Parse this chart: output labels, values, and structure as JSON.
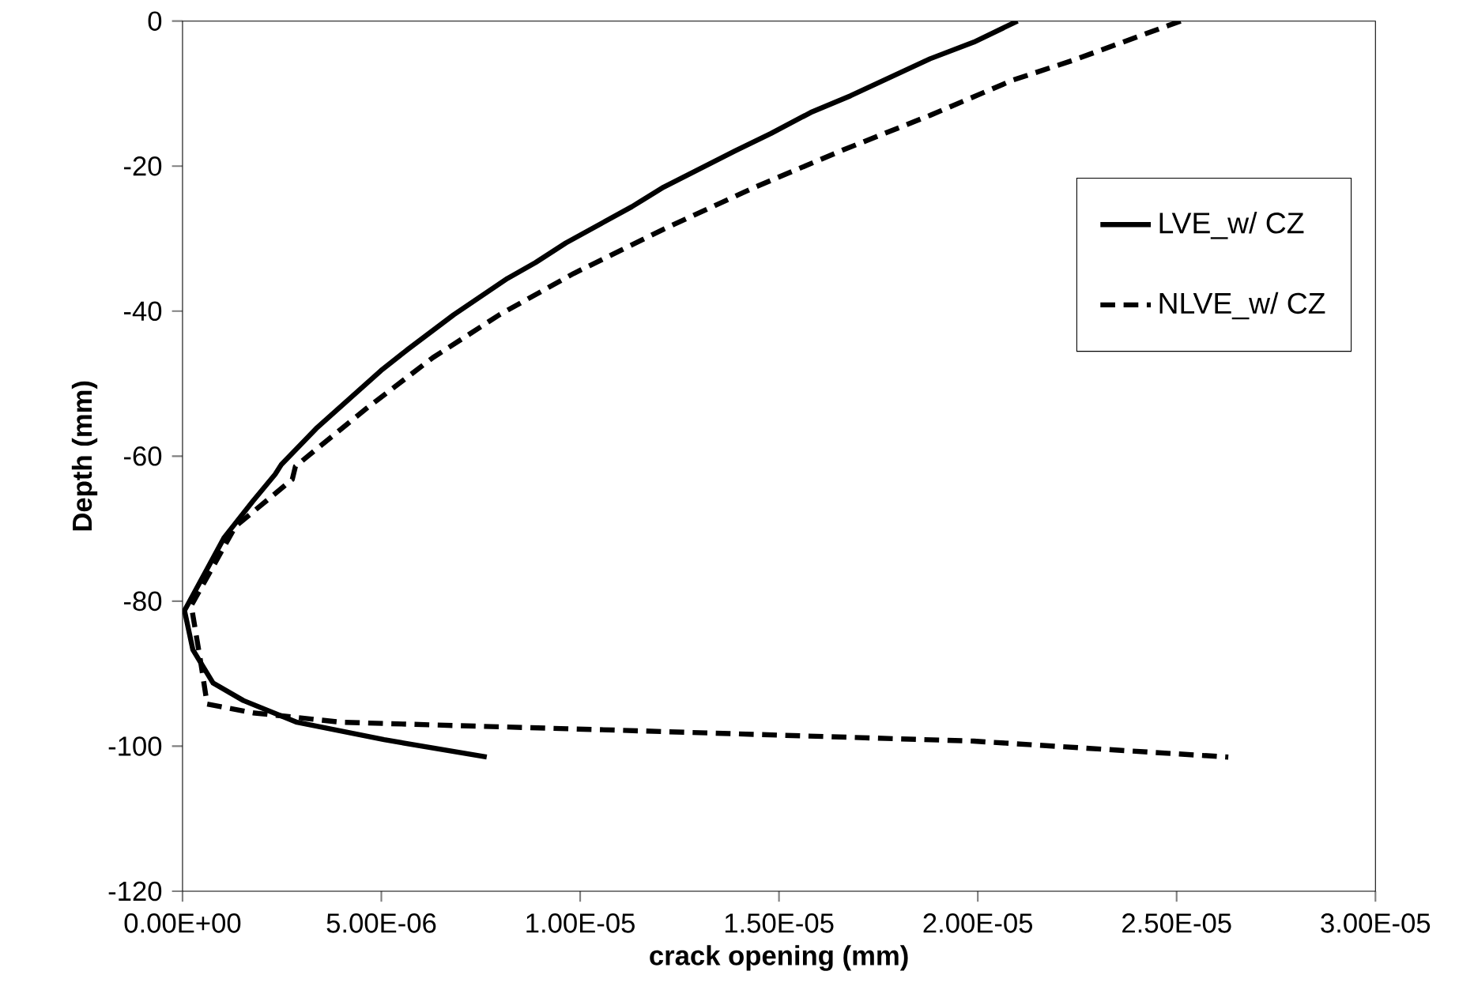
{
  "chart_data": {
    "type": "line",
    "xlabel": "crack opening (mm)",
    "ylabel": "Depth (mm)",
    "xlim": [
      0,
      3e-05
    ],
    "ylim": [
      -120,
      0
    ],
    "xticks": [
      {
        "value": 0,
        "label": "0.00E+00"
      },
      {
        "value": 5e-06,
        "label": "5.00E-06"
      },
      {
        "value": 1e-05,
        "label": "1.00E-05"
      },
      {
        "value": 1.5e-05,
        "label": "1.50E-05"
      },
      {
        "value": 2e-05,
        "label": "2.00E-05"
      },
      {
        "value": 2.5e-05,
        "label": "2.50E-05"
      },
      {
        "value": 3e-05,
        "label": "3.00E-05"
      }
    ],
    "yticks": [
      -120,
      -100,
      -80,
      -60,
      -40,
      -20,
      0
    ],
    "legend": "right",
    "series": [
      {
        "name": "LVE_w/ CZ",
        "color": "#000000",
        "line_style": "solid",
        "x": [
          2.1e-05,
          1.99e-05,
          1.88e-05,
          1.68e-05,
          1.58e-05,
          1.48e-05,
          1.39e-05,
          1.21e-05,
          1.13e-05,
          9.64e-06,
          8.88e-06,
          8.17e-06,
          6.82e-06,
          5.66e-06,
          4.99e-06,
          3.36e-06,
          2.48e-06,
          2.33e-06,
          1.77e-06,
          1.05e-06,
          5e-08,
          2.6e-07,
          7.7e-07,
          1.53e-06,
          2.88e-06,
          5.07e-06,
          7.65e-06
        ],
        "values": [
          0,
          -2.9,
          -5.2,
          -10.3,
          -12.6,
          -15.5,
          -17.9,
          -22.9,
          -25.6,
          -30.6,
          -33.3,
          -35.5,
          -40.5,
          -45.3,
          -48.2,
          -56.2,
          -61.2,
          -62.5,
          -66.2,
          -71.2,
          -81.3,
          -86.7,
          -91.3,
          -93.7,
          -96.7,
          -99.1,
          -101.5
        ]
      },
      {
        "name": "NLVE_w/ CZ",
        "color": "#000000",
        "line_style": "dashed",
        "x": [
          2.51e-05,
          2.24e-05,
          2.09e-05,
          1.88e-05,
          1.66e-05,
          1.44e-05,
          1.21e-05,
          9.84e-06,
          7.97e-06,
          6.3e-06,
          4.63e-06,
          2.84e-06,
          2.76e-06,
          1.33e-06,
          2.2e-07,
          4.6e-07,
          6.2e-07,
          1.77e-06,
          4e-06,
          1.1e-05,
          1.99e-05,
          2.63e-05
        ],
        "values": [
          0,
          -5.4,
          -8.1,
          -13.0,
          -17.8,
          -22.9,
          -28.7,
          -34.8,
          -40.5,
          -46.4,
          -53.4,
          -61.4,
          -63.2,
          -69.7,
          -80.6,
          -88.5,
          -94.2,
          -95.4,
          -96.7,
          -97.8,
          -99.3,
          -101.5
        ]
      }
    ]
  }
}
